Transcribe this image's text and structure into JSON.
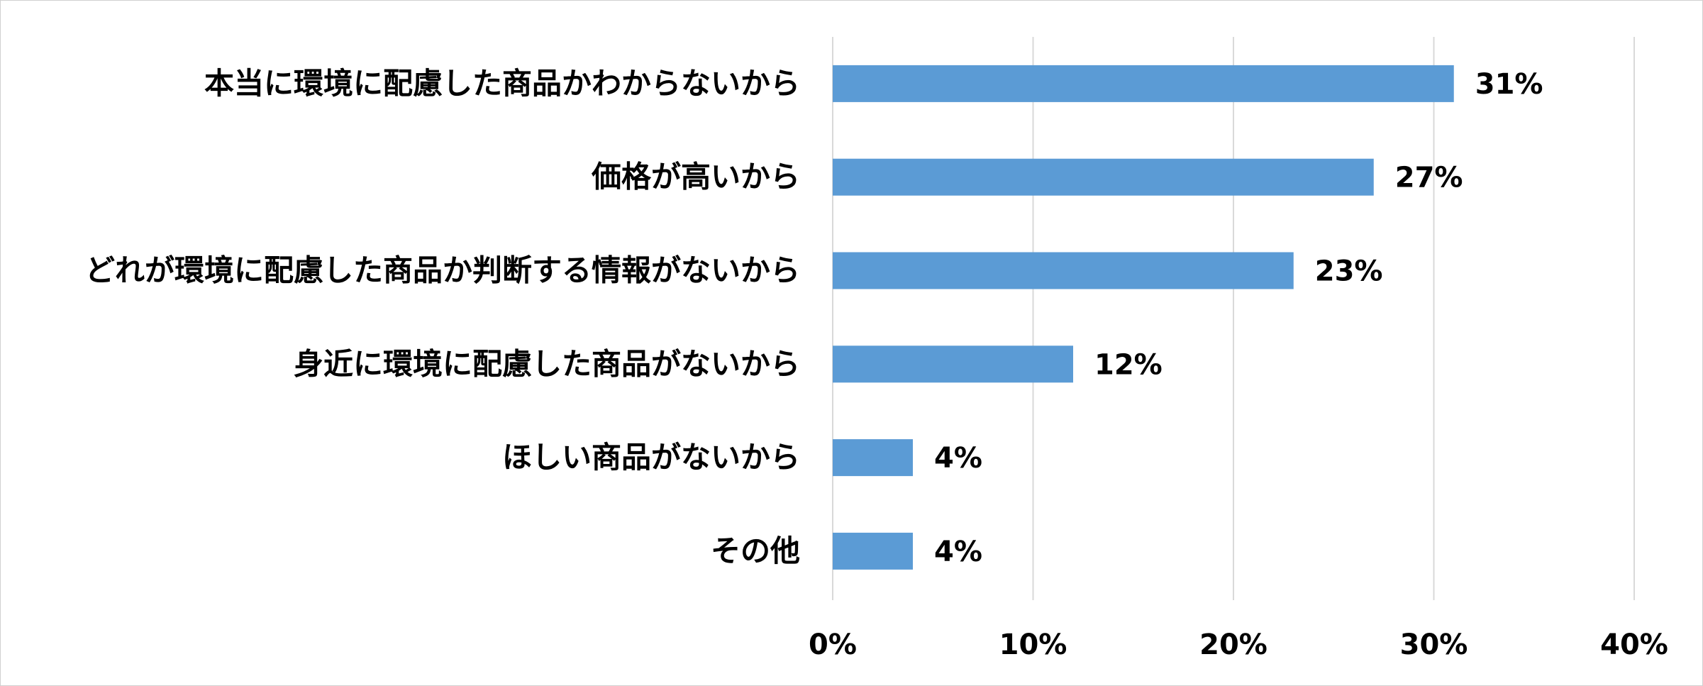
{
  "chart_data": {
    "type": "bar",
    "orientation": "horizontal",
    "categories": [
      "本当に環境に配慮した商品かわからないから",
      "価格が高いから",
      "どれが環境に配慮した商品か判断する情報がないから",
      "身近に環境に配慮した商品がないから",
      "ほしい商品がないから",
      "その他"
    ],
    "values": [
      31,
      27,
      23,
      12,
      4,
      4
    ],
    "value_labels": [
      "31%",
      "27%",
      "23%",
      "12%",
      "4%",
      "4%"
    ],
    "xlim": [
      0,
      40
    ],
    "x_ticks": [
      0,
      10,
      20,
      30,
      40
    ],
    "x_tick_labels": [
      "0%",
      "10%",
      "20%",
      "30%",
      "40%"
    ],
    "grid": true,
    "bar_color": "#5B9BD5",
    "grid_color": "#D9D9D9",
    "title": "",
    "xlabel": "",
    "ylabel": ""
  }
}
